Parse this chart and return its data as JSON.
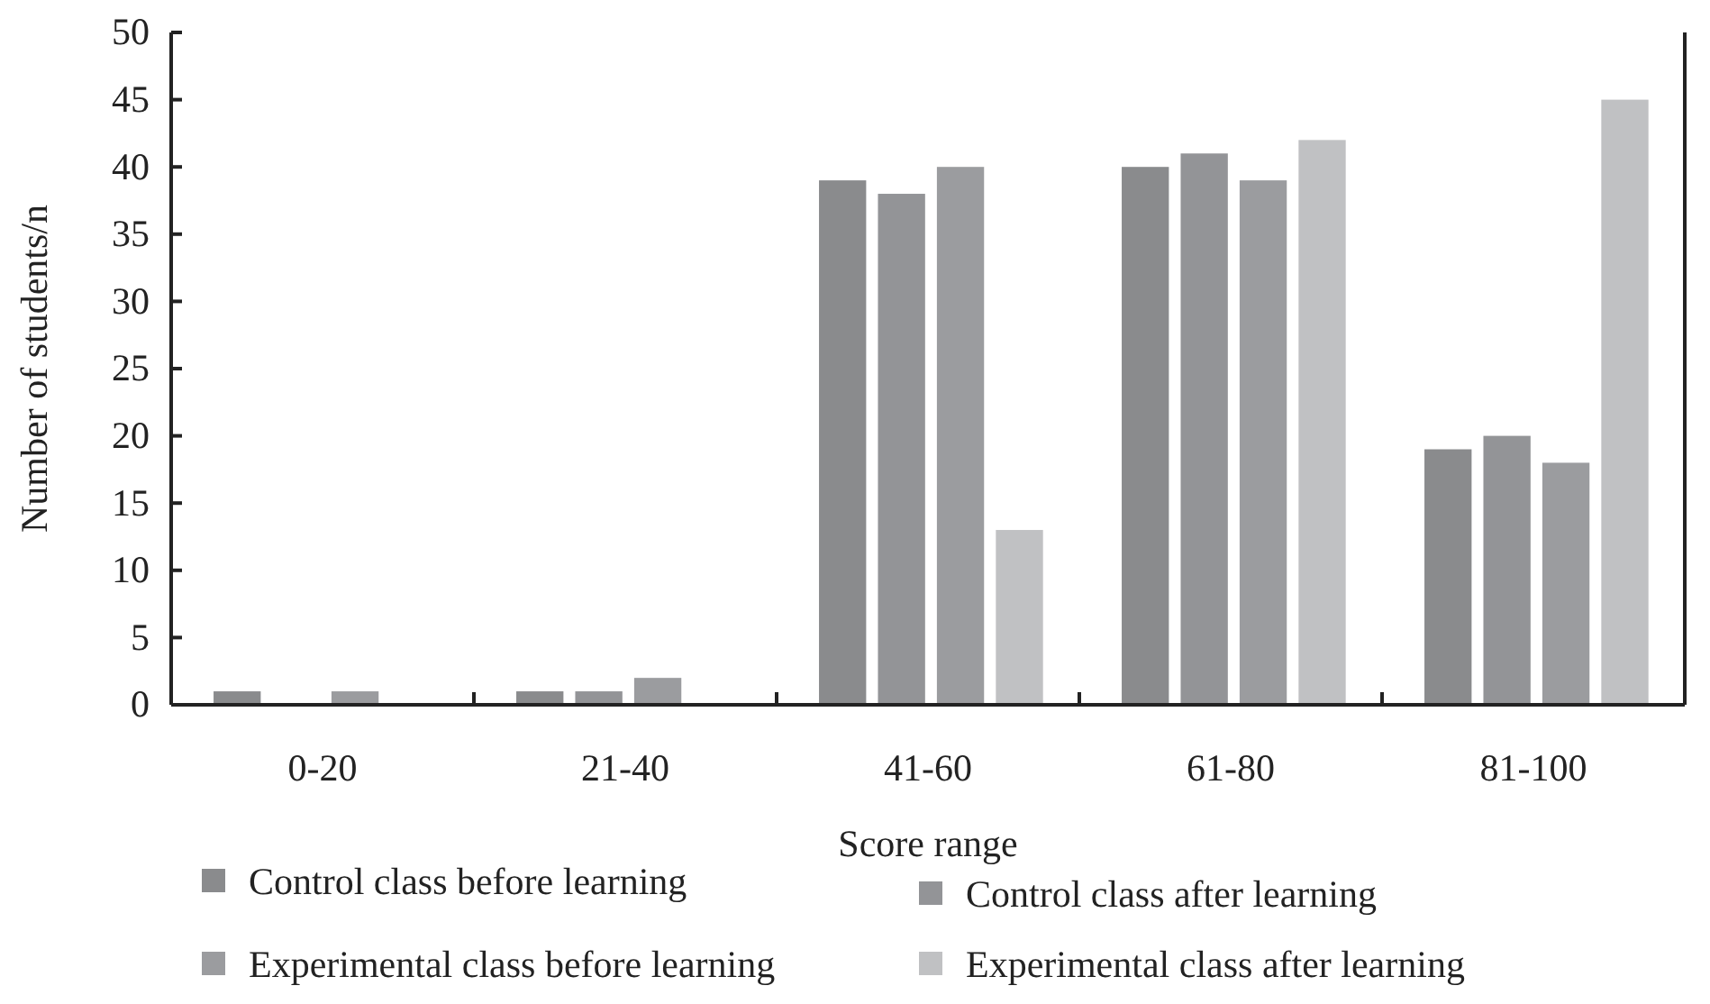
{
  "chart_data": {
    "type": "bar",
    "xlabel": "Score range",
    "ylabel": "Number of students/n",
    "categories": [
      "0-20",
      "21-40",
      "41-60",
      "61-80",
      "81-100"
    ],
    "series": [
      {
        "name": "Control class before learning",
        "color": "#8a8b8d",
        "values": [
          1,
          1,
          39,
          40,
          19
        ]
      },
      {
        "name": "Control class after learning",
        "color": "#939497",
        "values": [
          0,
          1,
          38,
          41,
          20
        ]
      },
      {
        "name": "Experimental class before learning",
        "color": "#9b9c9f",
        "values": [
          1,
          2,
          40,
          39,
          18
        ]
      },
      {
        "name": "Experimental class after learning",
        "color": "#c0c1c3",
        "values": [
          0,
          0,
          13,
          42,
          45
        ]
      }
    ],
    "ylim": [
      0,
      50
    ],
    "yticks": [
      0,
      5,
      10,
      15,
      20,
      25,
      30,
      35,
      40,
      45,
      50
    ],
    "grid": false,
    "legend": "bottom"
  }
}
